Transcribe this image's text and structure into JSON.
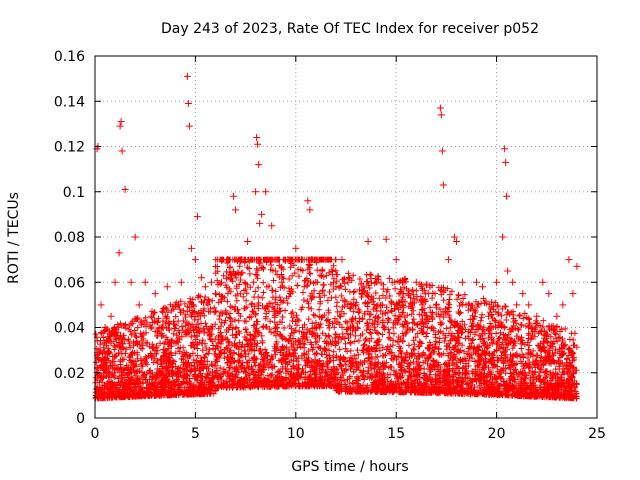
{
  "chart_data": {
    "type": "scatter",
    "title": "Day 243 of 2023, Rate Of TEC Index for receiver p052",
    "xlabel": "GPS time / hours",
    "ylabel": "ROTI / TECUs",
    "xlim": [
      0,
      25
    ],
    "ylim": [
      0,
      0.16
    ],
    "xticks": [
      0,
      5,
      10,
      15,
      20,
      25
    ],
    "yticks": [
      0,
      0.02,
      0.04,
      0.06,
      0.08,
      0.1,
      0.12,
      0.14,
      0.16
    ],
    "xtick_labels": [
      "0",
      "5",
      "10",
      "15",
      "20",
      "25"
    ],
    "ytick_labels": [
      "0",
      "0.02",
      "0.04",
      "0.06",
      "0.08",
      "0.1",
      "0.12",
      "0.14",
      "0.16"
    ],
    "grid": true,
    "marker": "+",
    "series": [
      {
        "name": "p052",
        "color": "#ff0000",
        "x": [
          0.1,
          0.15,
          0.3,
          0.5,
          0.8,
          1.0,
          1.2,
          1.25,
          1.3,
          1.35,
          1.5,
          1.8,
          2.0,
          2.2,
          2.5,
          2.8,
          3.0,
          3.3,
          3.6,
          4.0,
          4.3,
          4.6,
          4.65,
          4.7,
          4.8,
          5.0,
          5.1,
          5.3,
          5.5,
          5.8,
          6.0,
          6.3,
          6.6,
          6.9,
          7.0,
          7.3,
          7.6,
          7.9,
          8.0,
          8.05,
          8.1,
          8.15,
          8.2,
          8.3,
          8.5,
          8.8,
          9.0,
          9.3,
          9.6,
          10.0,
          10.3,
          10.6,
          10.7,
          10.8,
          11.0,
          11.3,
          11.6,
          12.0,
          12.3,
          12.6,
          13.0,
          13.3,
          13.6,
          14.0,
          14.3,
          14.5,
          14.8,
          15.0,
          15.3,
          15.6,
          16.0,
          16.3,
          16.6,
          17.0,
          17.2,
          17.25,
          17.3,
          17.35,
          17.6,
          17.9,
          18.0,
          18.3,
          18.6,
          19.0,
          19.3,
          19.6,
          20.0,
          20.3,
          20.4,
          20.45,
          20.5,
          20.55,
          20.8,
          21.0,
          21.3,
          21.6,
          22.0,
          22.3,
          22.6,
          23.0,
          23.3,
          23.6,
          23.8,
          24.0
        ],
        "y": [
          0.119,
          0.12,
          0.05,
          0.04,
          0.045,
          0.06,
          0.073,
          0.129,
          0.131,
          0.118,
          0.101,
          0.06,
          0.08,
          0.05,
          0.06,
          0.045,
          0.055,
          0.04,
          0.058,
          0.05,
          0.06,
          0.151,
          0.139,
          0.129,
          0.075,
          0.07,
          0.089,
          0.062,
          0.058,
          0.06,
          0.055,
          0.06,
          0.07,
          0.098,
          0.092,
          0.07,
          0.078,
          0.06,
          0.1,
          0.124,
          0.121,
          0.112,
          0.086,
          0.09,
          0.1,
          0.085,
          0.065,
          0.06,
          0.07,
          0.075,
          0.07,
          0.096,
          0.092,
          0.07,
          0.06,
          0.065,
          0.052,
          0.058,
          0.07,
          0.06,
          0.05,
          0.055,
          0.078,
          0.06,
          0.05,
          0.079,
          0.06,
          0.07,
          0.05,
          0.055,
          0.06,
          0.05,
          0.055,
          0.05,
          0.137,
          0.134,
          0.118,
          0.103,
          0.07,
          0.08,
          0.078,
          0.06,
          0.05,
          0.06,
          0.058,
          0.045,
          0.06,
          0.08,
          0.119,
          0.113,
          0.098,
          0.065,
          0.06,
          0.05,
          0.055,
          0.05,
          0.045,
          0.06,
          0.055,
          0.045,
          0.05,
          0.07,
          0.055,
          0.067
        ]
      }
    ]
  }
}
